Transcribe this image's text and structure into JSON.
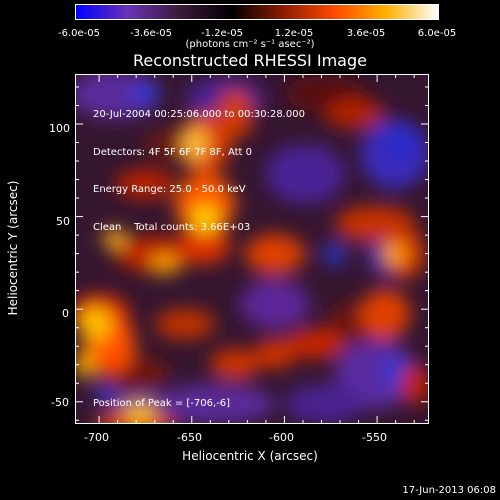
{
  "colorbar": {
    "ticks": [
      "-6.0e-05",
      "-3.6e-05",
      "-1.2e-05",
      "1.2e-05",
      "3.6e-05",
      "6.0e-05"
    ],
    "units": "(photons cm⁻² s⁻¹ asec⁻²)",
    "colors": [
      "#0000ff",
      "#6a32b4",
      "#3a1a3a",
      "#000000",
      "#8a1c00",
      "#ff4a00",
      "#ffb000",
      "#ffffff"
    ]
  },
  "chart_data": {
    "type": "heatmap",
    "title": "Reconstructed RHESSI Image",
    "xlabel": "Heliocentric X (arcsec)",
    "ylabel": "Heliocentric Y (arcsec)",
    "xlim": [
      -713,
      -522
    ],
    "ylim": [
      -62,
      127
    ],
    "xticks": [
      -700,
      -650,
      -600,
      -550
    ],
    "yticks": [
      -50,
      0,
      50,
      100
    ],
    "zlim": [
      -6e-05,
      6e-05
    ],
    "peak_position": [
      -706,
      -6
    ],
    "annotations": [
      "20-Jul-2004 00:25:06.000 to 00:30:28.000",
      "Detectors: 4F 5F 6F 7F 8F, Att 0",
      "Energy Range: 25.0 - 50.0 keV",
      "Clean    Total counts: 3.66E+03"
    ],
    "peak_label": "Position of Peak = [-706,-6]"
  },
  "timestamp": "17-Jun-2013 06:08"
}
